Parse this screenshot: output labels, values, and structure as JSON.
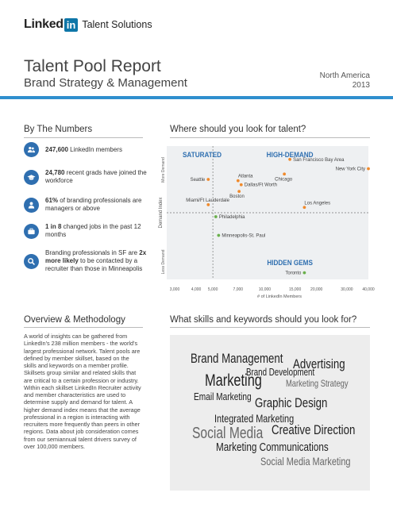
{
  "brand": {
    "logo_text": "Linked",
    "logo_in": "in",
    "product": "Talent Solutions"
  },
  "header": {
    "title": "Talent Pool Report",
    "subtitle": "Brand Strategy & Management",
    "region": "North America",
    "year": "2013"
  },
  "colors": {
    "accent_blue": "#2f8fce",
    "icon_blue": "#2f6fb0",
    "orange": "#f08a2c",
    "green": "#6ab04c"
  },
  "numbers": {
    "heading": "By The Numbers",
    "stats": [
      {
        "icon": "people-icon",
        "bold": "247,600",
        "text": " LinkedIn members"
      },
      {
        "icon": "graduation-cap-icon",
        "bold": "24,780",
        "text": " recent grads have joined the workforce"
      },
      {
        "icon": "person-icon",
        "bold": "61%",
        "text": " of branding professionals are managers or above"
      },
      {
        "icon": "briefcase-icon",
        "bold": "1 in 8",
        "text": " changed jobs in the past 12 months"
      },
      {
        "icon": "search-icon",
        "pre": "Branding professionals in SF are ",
        "bold": "2x more likely",
        "text": " to be contacted by a recruiter than those in Minneapolis"
      }
    ]
  },
  "talent": {
    "heading": "Where should you look for talent?"
  },
  "chart_data": {
    "type": "scatter",
    "xlabel": "# of LinkedIn Members",
    "ylabel": "Demand Index",
    "x_scale": "log",
    "x_ticks": [
      "3,000",
      "4,000",
      "5,000",
      "7,000",
      "10,000",
      "15,000",
      "20,000",
      "30,000",
      "40,000"
    ],
    "x_tick_values": [
      3000,
      4000,
      5000,
      7000,
      10000,
      15000,
      20000,
      30000,
      40000
    ],
    "y_range": [
      0,
      100
    ],
    "y_axis_labels": {
      "top": "More Demand",
      "bottom": "Less Demand"
    },
    "quadrant_labels": {
      "top_left": "SATURATED",
      "top_right": "HIGH-DEMAND",
      "bottom_right": "HIDDEN GEMS"
    },
    "divider": {
      "x": 5000,
      "y": 50
    },
    "points": [
      {
        "name": "San Francisco Bay Area",
        "x": 14000,
        "y": 90,
        "color": "orange",
        "label_side": "right"
      },
      {
        "name": "New York City",
        "x": 40000,
        "y": 83,
        "color": "orange",
        "label_side": "left"
      },
      {
        "name": "Seattle",
        "x": 4700,
        "y": 75,
        "color": "orange",
        "label_side": "left"
      },
      {
        "name": "Atlanta",
        "x": 7000,
        "y": 74,
        "color": "orange",
        "label_side": "above"
      },
      {
        "name": "Chicago",
        "x": 13000,
        "y": 79,
        "color": "orange",
        "label_side": "below"
      },
      {
        "name": "Dallas/Ft Worth",
        "x": 7300,
        "y": 71,
        "color": "orange",
        "label_side": "right"
      },
      {
        "name": "Boston",
        "x": 7100,
        "y": 66,
        "color": "orange",
        "label_side": "below"
      },
      {
        "name": "Miami/Ft Lauderdale",
        "x": 4700,
        "y": 56,
        "color": "orange",
        "label_side": "above"
      },
      {
        "name": "Los Angeles",
        "x": 17000,
        "y": 54,
        "color": "orange",
        "label_side": "above"
      },
      {
        "name": "Philadelphia",
        "x": 5200,
        "y": 47,
        "color": "green",
        "label_side": "right"
      },
      {
        "name": "Minneapolis-St. Paul",
        "x": 5400,
        "y": 33,
        "color": "green",
        "label_side": "right"
      },
      {
        "name": "Toronto",
        "x": 17000,
        "y": 5,
        "color": "green",
        "label_side": "left"
      }
    ]
  },
  "overview": {
    "heading": "Overview & Methodology",
    "body": "A world of insights can be gathered from LinkedIn's 238 million members - the world's largest professional network. Talent pools are defined by member skillset, based on the skills and keywords on a member profile. Skillsets group similar and related skills that are critical to a certain profession or industry. Within each skillset LinkedIn Recruiter activity and member characteristics are used to determine supply and demand for talent. A higher demand index means that the average professional in a region is interacting with recruiters more frequently than peers in other regions. Data about job consideration comes from our semiannual talent drivers survey of over 100,000 members."
  },
  "skills": {
    "heading": "What skills and keywords should you look for?",
    "keywords": [
      {
        "text": "Brand Management",
        "weight": "dark"
      },
      {
        "text": "Advertising",
        "weight": "dark"
      },
      {
        "text": "Brand Development",
        "weight": "dark"
      },
      {
        "text": "Marketing",
        "weight": "dark"
      },
      {
        "text": "Marketing Strategy",
        "weight": "light"
      },
      {
        "text": "Email Marketing",
        "weight": "dark"
      },
      {
        "text": "Graphic Design",
        "weight": "dark"
      },
      {
        "text": "Integrated Marketing",
        "weight": "dark"
      },
      {
        "text": "Social Media",
        "weight": "light"
      },
      {
        "text": "Creative Direction",
        "weight": "dark"
      },
      {
        "text": "Marketing Communications",
        "weight": "dark"
      },
      {
        "text": "Social Media Marketing",
        "weight": "light"
      }
    ]
  }
}
